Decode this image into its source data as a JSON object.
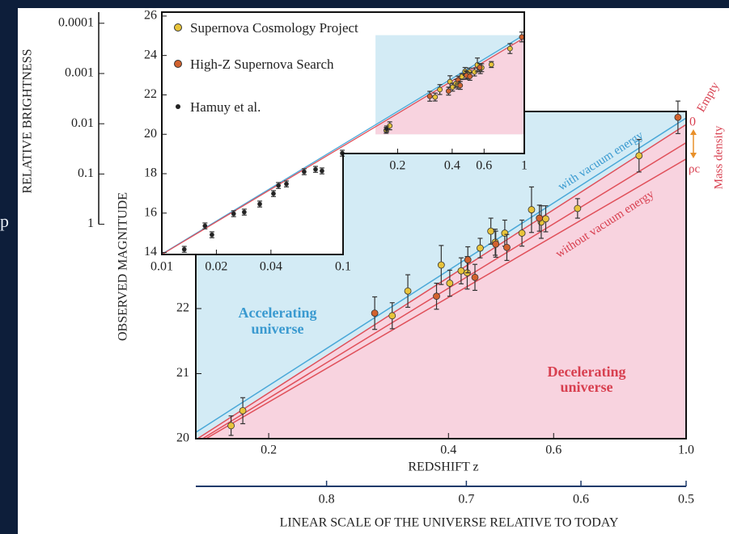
{
  "chart_data": [
    {
      "type": "scatter",
      "y_label": "OBSERVED MAGNITUDE",
      "x_label": "REDSHIFT z",
      "log_x": true,
      "xlim": [
        0.151,
        1.0
      ],
      "ylim": [
        20,
        25.03
      ],
      "xticks": [
        0.2,
        0.4,
        0.6,
        {
          "value": 1,
          "label": "1.0"
        }
      ],
      "yticks": [
        20,
        21,
        22
      ],
      "x2_label": "LINEAR SCALE OF THE UNIVERSE RELATIVE TO TODAY",
      "x2ticks": [
        0.8,
        0.7,
        0.6,
        0.5
      ],
      "series": [
        {
          "name": "Supernova Cosmology Project",
          "color": "#e8c43a",
          "x": [
            0.173,
            0.181,
            0.322,
            0.342,
            0.389,
            0.402,
            0.42,
            0.43,
            0.452,
            0.471,
            0.479,
            0.497,
            0.531,
            0.551,
            0.572,
            0.582,
            0.658,
            0.834
          ],
          "y": [
            20.2,
            20.43,
            21.89,
            22.27,
            22.67,
            22.39,
            22.58,
            22.55,
            22.93,
            23.19,
            23.02,
            23.16,
            23.16,
            23.52,
            23.33,
            23.38,
            23.54,
            24.35
          ],
          "err": [
            0.15,
            0.2,
            0.2,
            0.25,
            0.3,
            0.2,
            0.2,
            0.25,
            0.15,
            0.2,
            0.2,
            0.2,
            0.2,
            0.35,
            0.25,
            0.2,
            0.15,
            0.25
          ]
        },
        {
          "name": "High-Z Supernova Search",
          "color": "#d2622e",
          "x": [
            0.301,
            0.382,
            0.431,
            0.443,
            0.48,
            0.501,
            0.568,
            0.969
          ],
          "y": [
            21.93,
            22.19,
            22.75,
            22.48,
            22.99,
            22.94,
            23.39,
            24.94
          ],
          "err": [
            0.25,
            0.2,
            0.2,
            0.2,
            0.2,
            0.2,
            0.2,
            0.25
          ]
        }
      ],
      "lines": [
        {
          "color": "#4aa8d8",
          "x": [
            0.15,
            1.0
          ],
          "y": [
            20.08,
            24.93
          ]
        },
        {
          "color": "#e0505a",
          "x": [
            0.152,
            1.0
          ],
          "y": [
            20.0,
            24.83
          ]
        },
        {
          "color": "#e0505a",
          "x": [
            0.155,
            1.0
          ],
          "y": [
            20.0,
            24.55
          ]
        },
        {
          "color": "#e0505a",
          "x": [
            0.157,
            1.0
          ],
          "y": [
            20.0,
            24.3
          ]
        }
      ],
      "annotations": {
        "with": "with vacuum energy",
        "without": "without vacuum energy",
        "acc1": "Accelerating",
        "acc2": "universe",
        "dec1": "Decelerating",
        "dec2": "universe",
        "zero": "0",
        "empty": "Empty",
        "rho": "ρc",
        "mass": "Mass density"
      }
    },
    {
      "type": "scatter",
      "log_x": true,
      "xlim": [
        0.01,
        1
      ],
      "ylim": [
        13.9,
        26.2
      ],
      "xticks": [
        0.01,
        0.02,
        0.04,
        0.1,
        0.2,
        0.4,
        0.6,
        1
      ],
      "yticks": [
        14,
        16,
        18,
        20,
        22,
        24,
        26
      ],
      "y2_label": "RELATIVE BRIGHTNESS",
      "y2lim": [
        4,
        6e-05
      ],
      "log_y2": true,
      "y2ticks": [
        0.0001,
        0.001,
        0.01,
        0.1,
        1
      ],
      "series": [
        {
          "name": "Hamuy et al.",
          "color": "#222222",
          "x": [
            0.0133,
            0.0173,
            0.0189,
            0.0249,
            0.0285,
            0.0347,
            0.0413,
            0.044,
            0.0487,
            0.061,
            0.0705,
            0.0765,
            0.099,
            0.174
          ],
          "y": [
            14.16,
            15.35,
            14.9,
            15.97,
            16.05,
            16.46,
            16.99,
            17.4,
            17.48,
            18.1,
            18.22,
            18.14,
            19.04,
            20.27
          ],
          "err": [
            0.15,
            0.15,
            0.15,
            0.15,
            0.15,
            0.15,
            0.15,
            0.15,
            0.15,
            0.15,
            0.15,
            0.15,
            0.15,
            0.15
          ]
        }
      ],
      "lines": [
        {
          "color": "#4aa8d8",
          "x": [
            0.01,
            1
          ],
          "y": [
            13.92,
            25.05
          ]
        },
        {
          "color": "#e0505a",
          "x": [
            0.01,
            1
          ],
          "y": [
            13.9,
            24.9
          ]
        }
      ]
    }
  ],
  "background_text": "p"
}
